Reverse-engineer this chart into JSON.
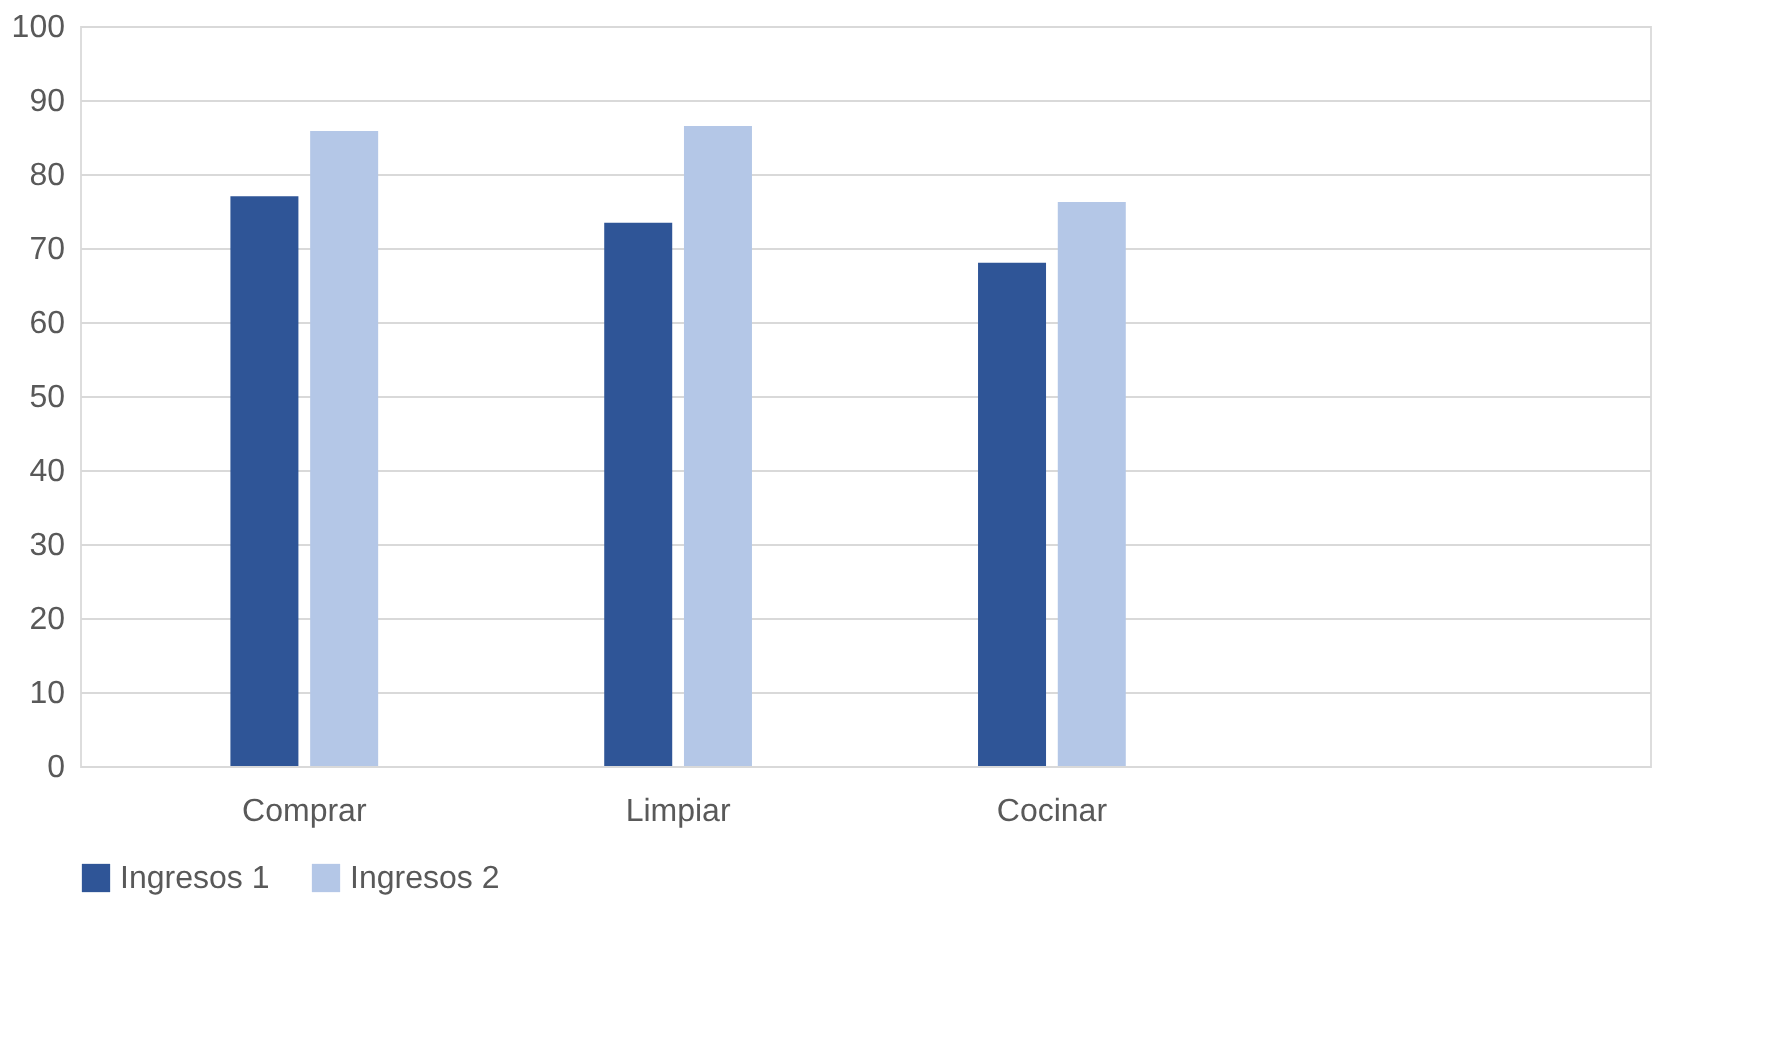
{
  "chart_data": {
    "type": "bar",
    "categories": [
      "Comprar",
      "Limpiar",
      "Cocinar",
      null
    ],
    "series": [
      {
        "name": "Ingresos 1",
        "color": "#2f5597",
        "values": [
          77.0,
          73.4,
          68.0,
          null
        ]
      },
      {
        "name": "Ingresos 2",
        "color": "#b4c7e7",
        "values": [
          85.8,
          86.5,
          76.2,
          null
        ]
      }
    ],
    "ylim": [
      0,
      100
    ],
    "yticks": [
      0,
      10,
      20,
      30,
      40,
      50,
      60,
      70,
      80,
      90,
      100
    ],
    "grid": "y",
    "legend": "bottom"
  }
}
